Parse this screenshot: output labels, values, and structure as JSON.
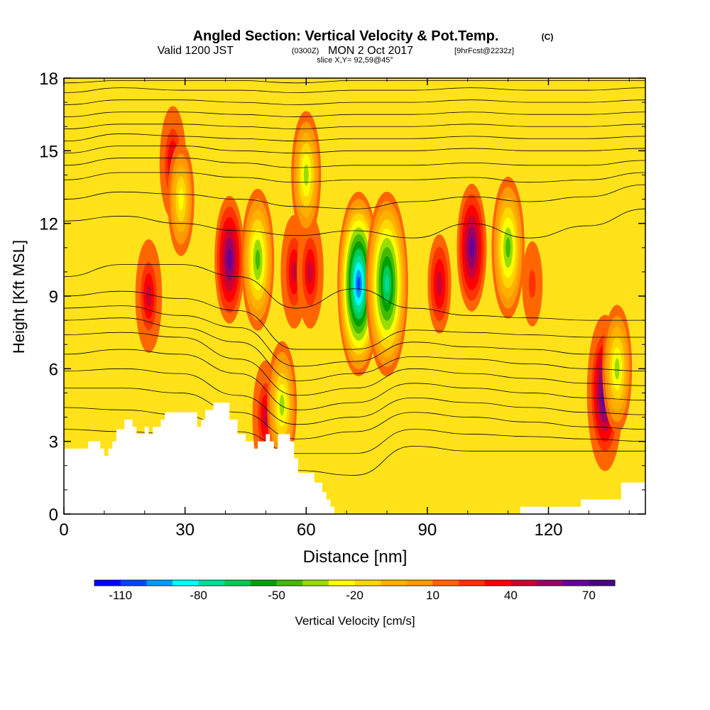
{
  "header": {
    "title_main": "Angled Section: Vertical Velocity & Pot.Temp.",
    "title_unit": "(C)",
    "valid_prefix": "Valid 1200 JST",
    "valid_utc": "(0300Z)",
    "valid_date": "MON 2 Oct 2017",
    "forecast_tag": "[9hrFcst@2232z]",
    "slice_label": "slice X,Y= 92,59@45°"
  },
  "chart_data": {
    "type": "heatmap",
    "xlabel": "Distance [nm]",
    "ylabel": "Height [Kft MSL]",
    "xlim": [
      0,
      144
    ],
    "ylim": [
      0,
      18
    ],
    "x_ticks": [
      "0",
      "30",
      "60",
      "90",
      "120"
    ],
    "y_ticks": [
      "0",
      "3",
      "6",
      "9",
      "12",
      "15",
      "18"
    ],
    "colorbar": {
      "label": "Vertical Velocity [cm/s]",
      "min": -120,
      "max": 80,
      "step": 10,
      "tick_labels": [
        "-110",
        "-80",
        "-50",
        "-20",
        "10",
        "40",
        "70"
      ],
      "colors": [
        "#0000ff",
        "#0044ff",
        "#0099ff",
        "#00ffff",
        "#00dd99",
        "#00cc55",
        "#00a000",
        "#44bb00",
        "#99dd00",
        "#ffff00",
        "#ffd700",
        "#ffb000",
        "#ff9900",
        "#ff6600",
        "#ff3300",
        "#ff0000",
        "#cc0033",
        "#990066",
        "#660099",
        "#4b0082"
      ]
    },
    "terrain": [
      [
        0,
        2.7
      ],
      [
        6,
        2.7
      ],
      [
        6,
        3.0
      ],
      [
        9,
        3.0
      ],
      [
        9,
        2.7
      ],
      [
        10,
        2.7
      ],
      [
        10,
        2.4
      ],
      [
        11,
        2.4
      ],
      [
        11,
        2.7
      ],
      [
        12,
        2.7
      ],
      [
        12,
        3.0
      ],
      [
        13,
        3.0
      ],
      [
        13,
        3.5
      ],
      [
        15,
        3.5
      ],
      [
        15,
        3.9
      ],
      [
        17,
        3.9
      ],
      [
        17,
        3.6
      ],
      [
        18,
        3.6
      ],
      [
        18,
        3.3
      ],
      [
        20,
        3.3
      ],
      [
        20,
        3.6
      ],
      [
        21,
        3.6
      ],
      [
        21,
        3.3
      ],
      [
        22,
        3.3
      ],
      [
        22,
        3.6
      ],
      [
        24,
        3.6
      ],
      [
        24,
        3.9
      ],
      [
        25,
        3.9
      ],
      [
        25,
        4.2
      ],
      [
        33,
        4.2
      ],
      [
        33,
        3.6
      ],
      [
        34,
        3.6
      ],
      [
        34,
        3.9
      ],
      [
        35,
        3.9
      ],
      [
        35,
        4.3
      ],
      [
        37,
        4.3
      ],
      [
        37,
        4.6
      ],
      [
        41,
        4.6
      ],
      [
        41,
        3.9
      ],
      [
        43,
        3.9
      ],
      [
        43,
        3.3
      ],
      [
        45,
        3.3
      ],
      [
        45,
        3.0
      ],
      [
        47,
        3.0
      ],
      [
        47,
        2.7
      ],
      [
        48,
        2.7
      ],
      [
        48,
        3.0
      ],
      [
        50,
        3.0
      ],
      [
        50,
        3.3
      ],
      [
        51,
        3.3
      ],
      [
        51,
        3.0
      ],
      [
        52,
        3.0
      ],
      [
        52,
        2.7
      ],
      [
        53,
        2.7
      ],
      [
        53,
        3.3
      ],
      [
        56,
        3.3
      ],
      [
        56,
        3.0
      ],
      [
        57,
        3.0
      ],
      [
        57,
        2.3
      ],
      [
        58,
        2.3
      ],
      [
        58,
        1.7
      ],
      [
        62,
        1.7
      ],
      [
        62,
        1.3
      ],
      [
        64,
        1.3
      ],
      [
        64,
        0.9
      ],
      [
        65,
        0.9
      ],
      [
        65,
        0.6
      ],
      [
        66,
        0.6
      ],
      [
        66,
        0.3
      ],
      [
        67,
        0.3
      ],
      [
        67,
        0
      ],
      [
        113,
        0
      ],
      [
        113,
        0.3
      ],
      [
        128,
        0.3
      ],
      [
        128,
        0.6
      ],
      [
        138,
        0.6
      ],
      [
        138,
        1.3
      ],
      [
        144,
        1.3
      ],
      [
        144,
        0
      ],
      [
        0,
        0
      ]
    ],
    "velocity_features": [
      {
        "x": 21,
        "z": 9.0,
        "value": 45
      },
      {
        "x": 27,
        "z": 14.5,
        "value": 45
      },
      {
        "x": 29,
        "z": 13.0,
        "value": -25
      },
      {
        "x": 41,
        "z": 10.5,
        "value": 60
      },
      {
        "x": 48,
        "z": 10.5,
        "value": -50
      },
      {
        "x": 50,
        "z": 4.0,
        "value": 45
      },
      {
        "x": 54,
        "z": 4.5,
        "value": -35
      },
      {
        "x": 57,
        "z": 10.0,
        "value": 45
      },
      {
        "x": 61,
        "z": 10.0,
        "value": 45
      },
      {
        "x": 60,
        "z": 14.0,
        "value": -35
      },
      {
        "x": 73,
        "z": 9.5,
        "value": -110
      },
      {
        "x": 80,
        "z": 9.5,
        "value": -80
      },
      {
        "x": 93,
        "z": 9.5,
        "value": 40
      },
      {
        "x": 101,
        "z": 11.0,
        "value": 60
      },
      {
        "x": 110,
        "z": 11.0,
        "value": -50
      },
      {
        "x": 116,
        "z": 9.5,
        "value": 25
      },
      {
        "x": 134,
        "z": 5.0,
        "value": 75
      },
      {
        "x": 137,
        "z": 6.0,
        "value": -40
      }
    ],
    "theta_isolines": [
      {
        "label": "",
        "z": [
          3.5,
          3.4,
          3.3,
          2.6,
          1.8,
          1.6,
          2.8,
          2.6,
          2.6,
          2.6,
          2.6
        ]
      },
      {
        "label": "",
        "z": [
          4.4,
          4.3,
          4.1,
          3.4,
          2.5,
          2.5,
          3.5,
          3.3,
          3.2,
          3.1,
          3.0
        ]
      },
      {
        "label": "",
        "z": [
          5.2,
          5.2,
          5.0,
          4.2,
          3.1,
          3.4,
          4.2,
          4.0,
          3.8,
          3.6,
          3.5
        ]
      },
      {
        "label": "",
        "z": [
          5.9,
          6.0,
          5.8,
          4.9,
          3.7,
          4.0,
          4.8,
          4.6,
          4.4,
          4.2,
          4.1
        ]
      },
      {
        "label": "",
        "z": [
          6.6,
          6.8,
          6.6,
          5.8,
          4.3,
          4.6,
          5.4,
          5.2,
          5.0,
          4.8,
          4.7
        ]
      },
      {
        "label": "",
        "z": [
          7.4,
          7.5,
          7.3,
          6.4,
          4.9,
          5.2,
          6.0,
          5.8,
          5.6,
          5.4,
          5.3
        ]
      },
      {
        "label": "",
        "z": [
          8.0,
          8.1,
          7.7,
          7.1,
          5.5,
          5.8,
          6.5,
          6.4,
          6.2,
          6.0,
          5.9
        ]
      },
      {
        "label": "",
        "z": [
          8.5,
          8.6,
          8.2,
          7.7,
          6.1,
          6.3,
          7.1,
          6.9,
          6.8,
          6.6,
          6.6
        ]
      },
      {
        "label": "",
        "z": [
          9.0,
          9.2,
          8.9,
          8.4,
          6.8,
          6.8,
          7.6,
          7.5,
          7.4,
          7.3,
          7.3
        ]
      },
      {
        "label": "",
        "z": [
          9.8,
          10.3,
          10.3,
          9.8,
          8.5,
          9.3,
          8.5,
          8.2,
          8.1,
          8.0,
          8.0
        ]
      },
      {
        "label": "",
        "z": [
          12.1,
          12.3,
          12.0,
          11.7,
          11.5,
          11.7,
          11.4,
          12.0,
          11.4,
          11.9,
          12.6
        ]
      },
      {
        "label": "",
        "z": [
          13.0,
          13.3,
          13.2,
          13.0,
          12.7,
          12.6,
          12.9,
          13.1,
          12.9,
          13.1,
          13.6
        ]
      },
      {
        "label": "",
        "z": [
          13.8,
          14.1,
          14.1,
          13.9,
          13.7,
          13.8,
          13.8,
          13.9,
          13.7,
          13.8,
          14.1
        ]
      },
      {
        "label": "",
        "z": [
          14.4,
          14.7,
          14.7,
          14.5,
          14.3,
          14.4,
          14.4,
          14.5,
          14.4,
          14.4,
          14.6
        ]
      },
      {
        "label": "",
        "z": [
          14.9,
          15.2,
          15.2,
          15.0,
          14.9,
          15.0,
          15.0,
          15.1,
          15.0,
          15.0,
          15.1
        ]
      },
      {
        "label": "",
        "z": [
          15.4,
          15.7,
          15.6,
          15.5,
          15.4,
          15.5,
          15.5,
          15.6,
          15.5,
          15.5,
          15.6
        ]
      },
      {
        "label": "",
        "z": [
          15.9,
          16.1,
          16.1,
          16.0,
          15.9,
          16.0,
          16.0,
          16.1,
          16.0,
          16.0,
          16.1
        ]
      },
      {
        "label": "",
        "z": [
          16.4,
          16.6,
          16.6,
          16.5,
          16.4,
          16.5,
          16.5,
          16.6,
          16.5,
          16.5,
          16.6
        ]
      },
      {
        "label": "",
        "z": [
          16.9,
          17.1,
          17.1,
          17.0,
          16.9,
          17.0,
          17.0,
          17.1,
          17.0,
          17.0,
          17.1
        ]
      },
      {
        "label": "",
        "z": [
          17.4,
          17.6,
          17.5,
          17.5,
          17.4,
          17.5,
          17.5,
          17.6,
          17.5,
          17.5,
          17.6
        ]
      },
      {
        "label": "",
        "z": [
          17.8,
          17.9,
          17.9,
          17.9,
          17.8,
          17.9,
          17.9,
          17.9,
          17.9,
          17.9,
          17.9
        ]
      }
    ],
    "isoline_x": [
      0,
      14.4,
      28.8,
      43.2,
      57.6,
      72,
      86.4,
      100.8,
      115.2,
      129.6,
      144
    ],
    "grid": false
  }
}
